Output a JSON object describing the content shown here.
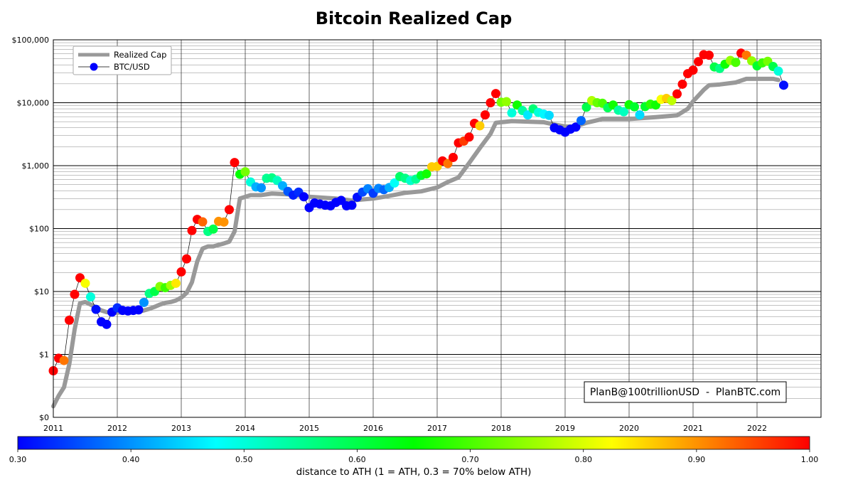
{
  "chart_data": {
    "type": "scatter",
    "title": "Bitcoin Realized Cap",
    "xlabel": "",
    "ylabel": "",
    "y_scale": "log",
    "ylim": [
      0.1,
      100000
    ],
    "xlim": [
      "2011-01",
      "2023-01"
    ],
    "grid": true,
    "legend_position": "top-left",
    "x_ticks": [
      "2011",
      "2012",
      "2013",
      "2014",
      "2015",
      "2016",
      "2017",
      "2018",
      "2019",
      "2020",
      "2021",
      "2022"
    ],
    "y_ticks": [
      {
        "value": 0.1,
        "label": "$0"
      },
      {
        "value": 1,
        "label": "$1"
      },
      {
        "value": 10,
        "label": "$10"
      },
      {
        "value": 100,
        "label": "$100"
      },
      {
        "value": 1000,
        "label": "$1,000"
      },
      {
        "value": 10000,
        "label": "$10,000"
      },
      {
        "value": 100000,
        "label": "$100,000"
      }
    ],
    "legend": [
      {
        "name": "Realized Cap",
        "style": "line",
        "color": "#999999"
      },
      {
        "name": "BTC/USD",
        "style": "marker",
        "color": "#0000ff"
      }
    ],
    "annotation": "PlanB@100trillionUSD  -  PlanBTC.com",
    "colorbar": {
      "min": 0.3,
      "max": 1.0,
      "ticks": [
        "0.30",
        "0.40",
        "0.50",
        "0.60",
        "0.70",
        "0.80",
        "0.90",
        "1.00"
      ],
      "label": "distance to ATH (1 = ATH, 0.3 = 70% below ATH)",
      "colormap": "jet"
    },
    "series": [
      {
        "name": "Realized Cap",
        "points": [
          [
            "2011-01",
            0.15
          ],
          [
            "2011-02",
            0.22
          ],
          [
            "2011-03",
            0.3
          ],
          [
            "2011-04",
            0.7
          ],
          [
            "2011-05",
            2.5
          ],
          [
            "2011-06",
            6.5
          ],
          [
            "2011-07",
            6.8
          ],
          [
            "2011-08",
            6.2
          ],
          [
            "2011-09",
            5.6
          ],
          [
            "2011-10",
            5.0
          ],
          [
            "2011-11",
            4.7
          ],
          [
            "2011-12",
            4.6
          ],
          [
            "2012-01",
            4.6
          ],
          [
            "2012-02",
            4.7
          ],
          [
            "2012-03",
            4.8
          ],
          [
            "2012-04",
            4.8
          ],
          [
            "2012-05",
            4.8
          ],
          [
            "2012-06",
            5.0
          ],
          [
            "2012-07",
            5.3
          ],
          [
            "2012-08",
            5.7
          ],
          [
            "2012-09",
            6.2
          ],
          [
            "2012-10",
            6.6
          ],
          [
            "2012-11",
            6.8
          ],
          [
            "2012-12",
            7.2
          ],
          [
            "2013-01",
            8.0
          ],
          [
            "2013-02",
            9.5
          ],
          [
            "2013-03",
            14
          ],
          [
            "2013-04",
            30
          ],
          [
            "2013-05",
            48
          ],
          [
            "2013-06",
            52
          ],
          [
            "2013-07",
            52
          ],
          [
            "2013-08",
            55
          ],
          [
            "2013-09",
            58
          ],
          [
            "2013-10",
            62
          ],
          [
            "2013-11",
            90
          ],
          [
            "2013-12",
            300
          ],
          [
            "2014-02",
            340
          ],
          [
            "2014-04",
            340
          ],
          [
            "2014-06",
            360
          ],
          [
            "2014-09",
            350
          ],
          [
            "2015-01",
            320
          ],
          [
            "2015-06",
            300
          ],
          [
            "2015-09",
            280
          ],
          [
            "2016-01",
            300
          ],
          [
            "2016-04",
            330
          ],
          [
            "2016-07",
            370
          ],
          [
            "2016-10",
            390
          ],
          [
            "2017-01",
            450
          ],
          [
            "2017-03",
            550
          ],
          [
            "2017-05",
            650
          ],
          [
            "2017-07",
            1100
          ],
          [
            "2017-09",
            1900
          ],
          [
            "2017-11",
            3200
          ],
          [
            "2017-12",
            4800
          ],
          [
            "2018-03",
            5100
          ],
          [
            "2018-06",
            5000
          ],
          [
            "2018-09",
            4900
          ],
          [
            "2018-11",
            4500
          ],
          [
            "2019-01",
            4200
          ],
          [
            "2019-03",
            4200
          ],
          [
            "2019-05",
            4800
          ],
          [
            "2019-08",
            5500
          ],
          [
            "2020-01",
            5500
          ],
          [
            "2020-06",
            5900
          ],
          [
            "2020-10",
            6300
          ],
          [
            "2020-12",
            8000
          ],
          [
            "2021-01",
            10500
          ],
          [
            "2021-03",
            16000
          ],
          [
            "2021-04",
            19000
          ],
          [
            "2021-06",
            19500
          ],
          [
            "2021-09",
            21000
          ],
          [
            "2021-11",
            24000
          ],
          [
            "2022-01",
            24000
          ],
          [
            "2022-04",
            24000
          ],
          [
            "2022-05",
            23000
          ]
        ]
      },
      {
        "name": "BTC/USD",
        "points": [
          [
            "2011-01",
            0.55,
            1.0
          ],
          [
            "2011-02",
            0.87,
            1.0
          ],
          [
            "2011-03",
            0.8,
            0.92
          ],
          [
            "2011-04",
            3.5,
            1.0
          ],
          [
            "2011-05",
            9,
            1.0
          ],
          [
            "2011-06",
            16.5,
            1.0
          ],
          [
            "2011-07",
            13.5,
            0.82
          ],
          [
            "2011-08",
            8.2,
            0.5
          ],
          [
            "2011-09",
            5.2,
            0.31
          ],
          [
            "2011-10",
            3.3,
            0.3
          ],
          [
            "2011-11",
            3.0,
            0.3
          ],
          [
            "2011-12",
            4.7,
            0.3
          ],
          [
            "2012-01",
            5.5,
            0.33
          ],
          [
            "2012-02",
            5.0,
            0.3
          ],
          [
            "2012-03",
            4.9,
            0.3
          ],
          [
            "2012-04",
            5.0,
            0.3
          ],
          [
            "2012-05",
            5.1,
            0.3
          ],
          [
            "2012-06",
            6.7,
            0.4
          ],
          [
            "2012-07",
            9.3,
            0.56
          ],
          [
            "2012-08",
            10,
            0.6
          ],
          [
            "2012-09",
            12,
            0.74
          ],
          [
            "2012-10",
            11.5,
            0.69
          ],
          [
            "2012-11",
            12.5,
            0.76
          ],
          [
            "2012-12",
            13.5,
            0.84
          ],
          [
            "2013-01",
            20.5,
            1.0
          ],
          [
            "2013-02",
            33,
            1.0
          ],
          [
            "2013-03",
            93,
            1.0
          ],
          [
            "2013-04",
            140,
            1.0
          ],
          [
            "2013-05",
            128,
            0.93
          ],
          [
            "2013-06",
            90,
            0.56
          ],
          [
            "2013-07",
            98,
            0.6
          ],
          [
            "2013-08",
            130,
            0.9
          ],
          [
            "2013-09",
            127,
            0.9
          ],
          [
            "2013-10",
            200,
            1.0
          ],
          [
            "2013-11",
            1120,
            1.0
          ],
          [
            "2013-12",
            730,
            0.65
          ],
          [
            "2014-01",
            800,
            0.73
          ],
          [
            "2014-02",
            550,
            0.5
          ],
          [
            "2014-03",
            460,
            0.42
          ],
          [
            "2014-04",
            445,
            0.4
          ],
          [
            "2014-05",
            630,
            0.55
          ],
          [
            "2014-06",
            640,
            0.56
          ],
          [
            "2014-07",
            580,
            0.52
          ],
          [
            "2014-08",
            480,
            0.42
          ],
          [
            "2014-09",
            390,
            0.36
          ],
          [
            "2014-10",
            340,
            0.32
          ],
          [
            "2014-11",
            380,
            0.33
          ],
          [
            "2014-12",
            320,
            0.3
          ],
          [
            "2015-01",
            215,
            0.3
          ],
          [
            "2015-02",
            255,
            0.3
          ],
          [
            "2015-03",
            245,
            0.3
          ],
          [
            "2015-04",
            235,
            0.3
          ],
          [
            "2015-05",
            230,
            0.3
          ],
          [
            "2015-06",
            260,
            0.3
          ],
          [
            "2015-07",
            280,
            0.3
          ],
          [
            "2015-08",
            230,
            0.3
          ],
          [
            "2015-09",
            235,
            0.3
          ],
          [
            "2015-10",
            315,
            0.31
          ],
          [
            "2015-11",
            380,
            0.35
          ],
          [
            "2015-12",
            430,
            0.39
          ],
          [
            "2016-01",
            365,
            0.34
          ],
          [
            "2016-02",
            435,
            0.39
          ],
          [
            "2016-03",
            415,
            0.37
          ],
          [
            "2016-04",
            450,
            0.42
          ],
          [
            "2016-05",
            530,
            0.48
          ],
          [
            "2016-06",
            670,
            0.58
          ],
          [
            "2016-07",
            630,
            0.56
          ],
          [
            "2016-08",
            580,
            0.51
          ],
          [
            "2016-09",
            610,
            0.55
          ],
          [
            "2016-10",
            700,
            0.62
          ],
          [
            "2016-11",
            740,
            0.66
          ],
          [
            "2016-12",
            960,
            0.86
          ],
          [
            "2017-01",
            970,
            0.86
          ],
          [
            "2017-02",
            1190,
            1.0
          ],
          [
            "2017-03",
            1080,
            0.92
          ],
          [
            "2017-04",
            1350,
            1.0
          ],
          [
            "2017-05",
            2300,
            1.0
          ],
          [
            "2017-06",
            2450,
            0.96
          ],
          [
            "2017-07",
            2850,
            1.0
          ],
          [
            "2017-08",
            4700,
            1.0
          ],
          [
            "2017-09",
            4300,
            0.86
          ],
          [
            "2017-10",
            6400,
            1.0
          ],
          [
            "2017-11",
            10000,
            1.0
          ],
          [
            "2017-12",
            14000,
            1.0
          ],
          [
            "2018-01",
            10200,
            0.73
          ],
          [
            "2018-02",
            10400,
            0.75
          ],
          [
            "2018-03",
            6900,
            0.5
          ],
          [
            "2018-04",
            9200,
            0.66
          ],
          [
            "2018-05",
            7500,
            0.54
          ],
          [
            "2018-06",
            6400,
            0.46
          ],
          [
            "2018-07",
            8000,
            0.57
          ],
          [
            "2018-08",
            7000,
            0.5
          ],
          [
            "2018-09",
            6600,
            0.47
          ],
          [
            "2018-10",
            6300,
            0.45
          ],
          [
            "2018-11",
            4000,
            0.3
          ],
          [
            "2018-12",
            3700,
            0.3
          ],
          [
            "2019-01",
            3400,
            0.3
          ],
          [
            "2019-02",
            3800,
            0.3
          ],
          [
            "2019-03",
            4100,
            0.3
          ],
          [
            "2019-04",
            5200,
            0.37
          ],
          [
            "2019-05",
            8500,
            0.6
          ],
          [
            "2019-06",
            10800,
            0.77
          ],
          [
            "2019-07",
            10000,
            0.72
          ],
          [
            "2019-08",
            9800,
            0.7
          ],
          [
            "2019-09",
            8300,
            0.59
          ],
          [
            "2019-10",
            9200,
            0.66
          ],
          [
            "2019-11",
            7600,
            0.54
          ],
          [
            "2019-12",
            7200,
            0.52
          ],
          [
            "2020-01",
            9300,
            0.66
          ],
          [
            "2020-02",
            8600,
            0.62
          ],
          [
            "2020-03",
            6400,
            0.45
          ],
          [
            "2020-04",
            8700,
            0.62
          ],
          [
            "2020-05",
            9500,
            0.68
          ],
          [
            "2020-06",
            9200,
            0.66
          ],
          [
            "2020-07",
            11300,
            0.82
          ],
          [
            "2020-08",
            11700,
            0.86
          ],
          [
            "2020-09",
            10800,
            0.78
          ],
          [
            "2020-10",
            13800,
            1.0
          ],
          [
            "2020-11",
            19700,
            1.0
          ],
          [
            "2020-12",
            29000,
            1.0
          ],
          [
            "2021-01",
            33000,
            1.0
          ],
          [
            "2021-02",
            45000,
            1.0
          ],
          [
            "2021-03",
            58000,
            1.0
          ],
          [
            "2021-04",
            57000,
            1.0
          ],
          [
            "2021-05",
            37000,
            0.6
          ],
          [
            "2021-06",
            35000,
            0.56
          ],
          [
            "2021-07",
            41000,
            0.66
          ],
          [
            "2021-08",
            47000,
            0.75
          ],
          [
            "2021-09",
            43800,
            0.7
          ],
          [
            "2021-10",
            61300,
            1.0
          ],
          [
            "2021-11",
            57000,
            0.92
          ],
          [
            "2021-12",
            46300,
            0.75
          ],
          [
            "2022-01",
            38500,
            0.62
          ],
          [
            "2022-02",
            43000,
            0.69
          ],
          [
            "2022-03",
            45500,
            0.73
          ],
          [
            "2022-04",
            37700,
            0.6
          ],
          [
            "2022-05",
            31800,
            0.5
          ],
          [
            "2022-06",
            19000,
            0.31
          ]
        ]
      }
    ]
  }
}
